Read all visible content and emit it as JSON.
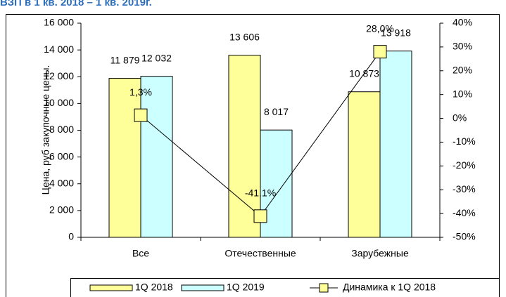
{
  "chart_data": {
    "type": "bar",
    "title": "ВЗП в 1 кв. 2018 – 1 кв. 2019г.",
    "y_label": "Цена, руб закупочные цены.",
    "categories": [
      "Все",
      "Отечественные",
      "Зарубежные"
    ],
    "series": [
      {
        "name": "1Q 2018",
        "type": "bar",
        "color": "#FFFF99",
        "values": [
          11879,
          13606,
          10873
        ],
        "value_labels": [
          "11 879",
          "13 606",
          "10 873"
        ]
      },
      {
        "name": "1Q 2019",
        "type": "bar",
        "color": "#CCFFFF",
        "values": [
          12032,
          8017,
          13918
        ],
        "value_labels": [
          "12 032",
          "8 017",
          "13 918"
        ]
      },
      {
        "name": "Динамика к 1Q 2018",
        "type": "line",
        "axis": "y2",
        "color": "#000000",
        "marker_color": "#FFFF99",
        "values": [
          1.3,
          -41.1,
          28.0
        ],
        "value_labels": [
          "1,3%",
          "-41,1%",
          "28,0%"
        ]
      }
    ],
    "ylim": [
      0,
      16000
    ],
    "yticks": [
      0,
      {
        "value": 2000,
        "label": "2 000"
      },
      {
        "value": 4000,
        "label": "4 000"
      },
      {
        "value": 6000,
        "label": "6 000"
      },
      {
        "value": 8000,
        "label": "8 000"
      },
      {
        "value": 10000,
        "label": "10 000"
      },
      {
        "value": 12000,
        "label": "12 000"
      },
      {
        "value": 14000,
        "label": "14 000"
      },
      {
        "value": 16000,
        "label": "16 000"
      }
    ],
    "y2lim": [
      -50,
      40
    ],
    "y2ticks": [
      {
        "value": -50,
        "label": "-50%"
      },
      {
        "value": -40,
        "label": "-40%"
      },
      {
        "value": -30,
        "label": "-30%"
      },
      {
        "value": -20,
        "label": "-20%"
      },
      {
        "value": -10,
        "label": "-10%"
      },
      {
        "value": 0,
        "label": "0%"
      },
      {
        "value": 10,
        "label": "10%"
      },
      {
        "value": 20,
        "label": "20%"
      },
      {
        "value": 30,
        "label": "30%"
      },
      {
        "value": 40,
        "label": "40%"
      }
    ],
    "legend": "bottom"
  }
}
